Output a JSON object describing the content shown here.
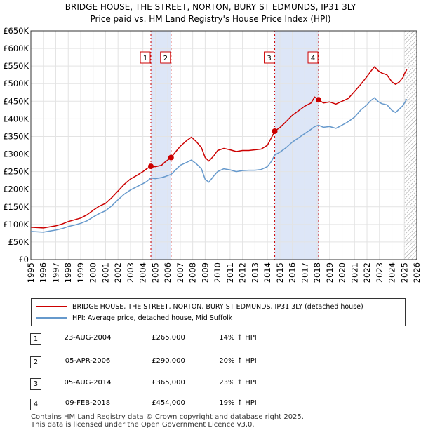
{
  "chart_data": {
    "type": "line",
    "title_line1": "BRIDGE HOUSE, THE STREET, NORTON, BURY ST EDMUNDS, IP31 3LY",
    "title_line2": "Price paid vs. HM Land Registry's House Price Index (HPI)",
    "xlim": [
      1995,
      2026
    ],
    "ylim": [
      0,
      650000
    ],
    "y_ticks": [
      0,
      50000,
      100000,
      150000,
      200000,
      250000,
      300000,
      350000,
      400000,
      450000,
      500000,
      550000,
      600000,
      650000
    ],
    "y_tick_labels": [
      "£0",
      "£50K",
      "£100K",
      "£150K",
      "£200K",
      "£250K",
      "£300K",
      "£350K",
      "£400K",
      "£450K",
      "£500K",
      "£550K",
      "£600K",
      "£650K"
    ],
    "x_ticks": [
      1995,
      1996,
      1997,
      1998,
      1999,
      2000,
      2001,
      2002,
      2003,
      2004,
      2005,
      2006,
      2007,
      2008,
      2009,
      2010,
      2011,
      2012,
      2013,
      2014,
      2015,
      2016,
      2017,
      2018,
      2019,
      2020,
      2021,
      2022,
      2023,
      2024,
      2025,
      2026
    ],
    "x_tick_labels": [
      "1995",
      "1996",
      "1997",
      "1998",
      "1999",
      "2000",
      "2001",
      "2002",
      "2003",
      "2004",
      "2005",
      "2006",
      "2007",
      "2008",
      "2009",
      "2010",
      "2011",
      "2012",
      "2013",
      "2014",
      "2015",
      "2016",
      "2017",
      "2018",
      "2019",
      "2020",
      "2021",
      "2022",
      "2023",
      "2024",
      "2025",
      "2026"
    ],
    "shaded_ranges": [
      [
        2004.64,
        2006.26
      ],
      [
        2014.59,
        2018.11
      ]
    ],
    "hatched_from": 2025.0,
    "series": [
      {
        "name": "BRIDGE HOUSE, THE STREET, NORTON, BURY ST EDMUNDS, IP31 3LY (detached house)",
        "color": "#cc0000",
        "points": [
          [
            1995.0,
            92000
          ],
          [
            1995.5,
            91000
          ],
          [
            1996.0,
            90000
          ],
          [
            1996.5,
            93000
          ],
          [
            1997.0,
            96000
          ],
          [
            1997.5,
            101000
          ],
          [
            1998.0,
            108000
          ],
          [
            1998.5,
            113000
          ],
          [
            1999.0,
            118000
          ],
          [
            1999.5,
            127000
          ],
          [
            2000.0,
            140000
          ],
          [
            2000.5,
            152000
          ],
          [
            2001.0,
            160000
          ],
          [
            2001.5,
            176000
          ],
          [
            2002.0,
            195000
          ],
          [
            2002.5,
            214000
          ],
          [
            2003.0,
            229000
          ],
          [
            2003.5,
            239000
          ],
          [
            2004.0,
            250000
          ],
          [
            2004.3,
            258000
          ],
          [
            2004.64,
            265000
          ],
          [
            2005.0,
            264000
          ],
          [
            2005.5,
            268000
          ],
          [
            2005.8,
            278000
          ],
          [
            2006.26,
            290000
          ],
          [
            2006.6,
            305000
          ],
          [
            2007.0,
            322000
          ],
          [
            2007.5,
            338000
          ],
          [
            2007.9,
            348000
          ],
          [
            2008.3,
            335000
          ],
          [
            2008.7,
            318000
          ],
          [
            2009.0,
            290000
          ],
          [
            2009.3,
            280000
          ],
          [
            2009.7,
            295000
          ],
          [
            2010.0,
            310000
          ],
          [
            2010.5,
            316000
          ],
          [
            2011.0,
            312000
          ],
          [
            2011.5,
            307000
          ],
          [
            2012.0,
            310000
          ],
          [
            2012.5,
            310000
          ],
          [
            2013.0,
            312000
          ],
          [
            2013.5,
            314000
          ],
          [
            2014.0,
            325000
          ],
          [
            2014.3,
            345000
          ],
          [
            2014.59,
            365000
          ],
          [
            2015.0,
            375000
          ],
          [
            2015.5,
            392000
          ],
          [
            2016.0,
            410000
          ],
          [
            2016.5,
            423000
          ],
          [
            2017.0,
            436000
          ],
          [
            2017.5,
            445000
          ],
          [
            2017.8,
            462000
          ],
          [
            2018.11,
            454000
          ],
          [
            2018.5,
            445000
          ],
          [
            2019.0,
            448000
          ],
          [
            2019.5,
            442000
          ],
          [
            2020.0,
            450000
          ],
          [
            2020.5,
            458000
          ],
          [
            2021.0,
            478000
          ],
          [
            2021.5,
            498000
          ],
          [
            2022.0,
            520000
          ],
          [
            2022.3,
            535000
          ],
          [
            2022.6,
            548000
          ],
          [
            2022.9,
            537000
          ],
          [
            2023.2,
            530000
          ],
          [
            2023.6,
            525000
          ],
          [
            2024.0,
            505000
          ],
          [
            2024.3,
            498000
          ],
          [
            2024.6,
            505000
          ],
          [
            2024.9,
            518000
          ],
          [
            2025.0,
            528000
          ],
          [
            2025.2,
            540000
          ]
        ]
      },
      {
        "name": "HPI: Average price, detached house, Mid Suffolk",
        "color": "#6699cc",
        "points": [
          [
            1995.0,
            80000
          ],
          [
            1995.5,
            79000
          ],
          [
            1996.0,
            78000
          ],
          [
            1996.5,
            81000
          ],
          [
            1997.0,
            84000
          ],
          [
            1997.5,
            88000
          ],
          [
            1998.0,
            94000
          ],
          [
            1998.5,
            98000
          ],
          [
            1999.0,
            103000
          ],
          [
            1999.5,
            110000
          ],
          [
            2000.0,
            121000
          ],
          [
            2000.5,
            131000
          ],
          [
            2001.0,
            139000
          ],
          [
            2001.5,
            153000
          ],
          [
            2002.0,
            170000
          ],
          [
            2002.5,
            186000
          ],
          [
            2003.0,
            198000
          ],
          [
            2003.5,
            207000
          ],
          [
            2004.0,
            216000
          ],
          [
            2004.3,
            222000
          ],
          [
            2004.64,
            232000
          ],
          [
            2005.0,
            230000
          ],
          [
            2005.5,
            233000
          ],
          [
            2005.8,
            236000
          ],
          [
            2006.26,
            242000
          ],
          [
            2006.6,
            254000
          ],
          [
            2007.0,
            268000
          ],
          [
            2007.5,
            276000
          ],
          [
            2007.9,
            283000
          ],
          [
            2008.3,
            272000
          ],
          [
            2008.7,
            258000
          ],
          [
            2009.0,
            228000
          ],
          [
            2009.3,
            220000
          ],
          [
            2009.7,
            238000
          ],
          [
            2010.0,
            250000
          ],
          [
            2010.5,
            258000
          ],
          [
            2011.0,
            255000
          ],
          [
            2011.5,
            250000
          ],
          [
            2012.0,
            253000
          ],
          [
            2012.5,
            254000
          ],
          [
            2013.0,
            254000
          ],
          [
            2013.5,
            256000
          ],
          [
            2014.0,
            264000
          ],
          [
            2014.3,
            278000
          ],
          [
            2014.59,
            297000
          ],
          [
            2015.0,
            305000
          ],
          [
            2015.5,
            318000
          ],
          [
            2016.0,
            334000
          ],
          [
            2016.5,
            346000
          ],
          [
            2017.0,
            358000
          ],
          [
            2017.5,
            370000
          ],
          [
            2017.8,
            378000
          ],
          [
            2018.11,
            382000
          ],
          [
            2018.5,
            376000
          ],
          [
            2019.0,
            378000
          ],
          [
            2019.5,
            373000
          ],
          [
            2020.0,
            382000
          ],
          [
            2020.5,
            392000
          ],
          [
            2021.0,
            405000
          ],
          [
            2021.5,
            425000
          ],
          [
            2022.0,
            440000
          ],
          [
            2022.3,
            452000
          ],
          [
            2022.6,
            460000
          ],
          [
            2022.9,
            449000
          ],
          [
            2023.2,
            443000
          ],
          [
            2023.6,
            440000
          ],
          [
            2024.0,
            424000
          ],
          [
            2024.3,
            418000
          ],
          [
            2024.6,
            428000
          ],
          [
            2024.9,
            438000
          ],
          [
            2025.0,
            445000
          ],
          [
            2025.2,
            456000
          ]
        ]
      }
    ],
    "transactions": [
      {
        "n": "1",
        "date": "23-AUG-2004",
        "price": "£265,000",
        "hpi": "14% ↑ HPI",
        "x": 2004.64,
        "y": 265000
      },
      {
        "n": "2",
        "date": "05-APR-2006",
        "price": "£290,000",
        "hpi": "20% ↑ HPI",
        "x": 2006.26,
        "y": 290000
      },
      {
        "n": "3",
        "date": "05-AUG-2014",
        "price": "£365,000",
        "hpi": "23% ↑ HPI",
        "x": 2014.59,
        "y": 365000
      },
      {
        "n": "4",
        "date": "09-FEB-2018",
        "price": "£454,000",
        "hpi": "19% ↑ HPI",
        "x": 2018.11,
        "y": 454000
      }
    ]
  },
  "legend": {
    "property_label": "BRIDGE HOUSE, THE STREET, NORTON, BURY ST EDMUNDS, IP31 3LY (detached house)",
    "hpi_label": "HPI: Average price, detached house, Mid Suffolk",
    "property_color": "#cc0000",
    "hpi_color": "#6699cc"
  },
  "footer": {
    "line1": "Contains HM Land Registry data © Crown copyright and database right 2025.",
    "line2": "This data is licensed under the Open Government Licence v3.0."
  }
}
